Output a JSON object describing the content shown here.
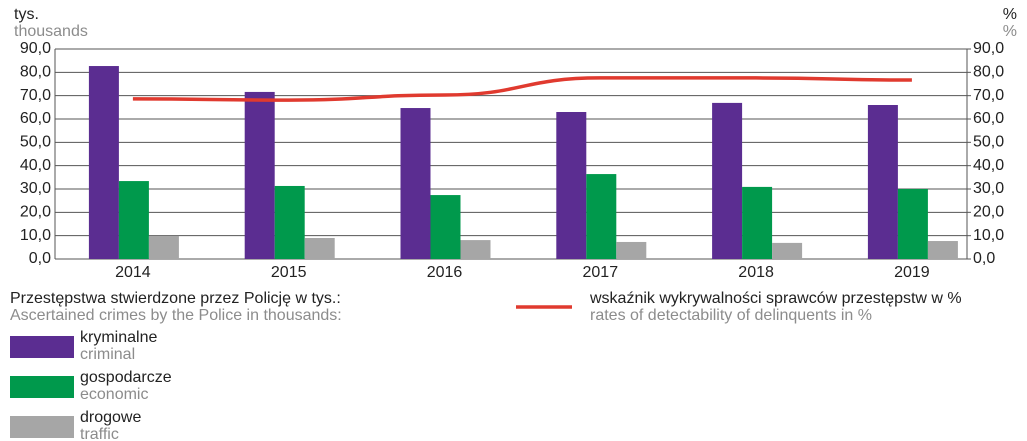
{
  "chart_data": {
    "type": "bar",
    "y_unit": "tys.",
    "y_unit_en": "thousands",
    "y2_unit": "%",
    "y2_unit_en": "%",
    "categories": [
      "2014",
      "2015",
      "2016",
      "2017",
      "2018",
      "2019"
    ],
    "ylim": [
      0,
      90
    ],
    "yticks": [
      {
        "value": 0,
        "label": "0,0"
      },
      {
        "value": 10,
        "label": "10,0"
      },
      {
        "value": 20,
        "label": "20,0"
      },
      {
        "value": 30,
        "label": "30,0"
      },
      {
        "value": 40,
        "label": "40,0"
      },
      {
        "value": 50,
        "label": "50,0"
      },
      {
        "value": 60,
        "label": "60,0"
      },
      {
        "value": 70,
        "label": "70,0"
      },
      {
        "value": 80,
        "label": "80,0"
      },
      {
        "value": 90,
        "label": "90,0"
      }
    ],
    "y2lim": [
      0,
      90
    ],
    "y2ticks": [
      {
        "value": 0,
        "label": "0,0"
      },
      {
        "value": 10,
        "label": "10,0"
      },
      {
        "value": 20,
        "label": "20,0"
      },
      {
        "value": 30,
        "label": "30,0"
      },
      {
        "value": 40,
        "label": "40,0"
      },
      {
        "value": 50,
        "label": "50,0"
      },
      {
        "value": 60,
        "label": "60,0"
      },
      {
        "value": 70,
        "label": "70,0"
      },
      {
        "value": 80,
        "label": "80,0"
      },
      {
        "value": 90,
        "label": "90,0"
      }
    ],
    "grid": true,
    "bar_legend_title": "Przestępstwa stwierdzone przez Policję w tys.:",
    "bar_legend_title_en": "Ascertained crimes by the Police in thousands:",
    "series": [
      {
        "name": "kryminalne",
        "name_en": "criminal",
        "color": "#5b2d91",
        "values": [
          82.7,
          71.6,
          64.7,
          63.0,
          66.9,
          66.0
        ]
      },
      {
        "name": "gospodarcze",
        "name_en": "economic",
        "color": "#00994c",
        "values": [
          33.4,
          31.3,
          27.4,
          36.4,
          30.9,
          30.0
        ]
      },
      {
        "name": "drogowe",
        "name_en": "traffic",
        "color": "#a6a6a6",
        "values": [
          9.9,
          9.0,
          8.1,
          7.3,
          6.9,
          7.7
        ]
      },
      {
        "name": "wskaźnik wykrywalności sprawców przestępstw w %",
        "name_en": "rates of detectability of delinquents in %",
        "color": "#e03a2f",
        "type": "line",
        "axis": "y2",
        "values": [
          68.6,
          68.1,
          70.3,
          77.6,
          77.6,
          76.7
        ]
      }
    ]
  }
}
